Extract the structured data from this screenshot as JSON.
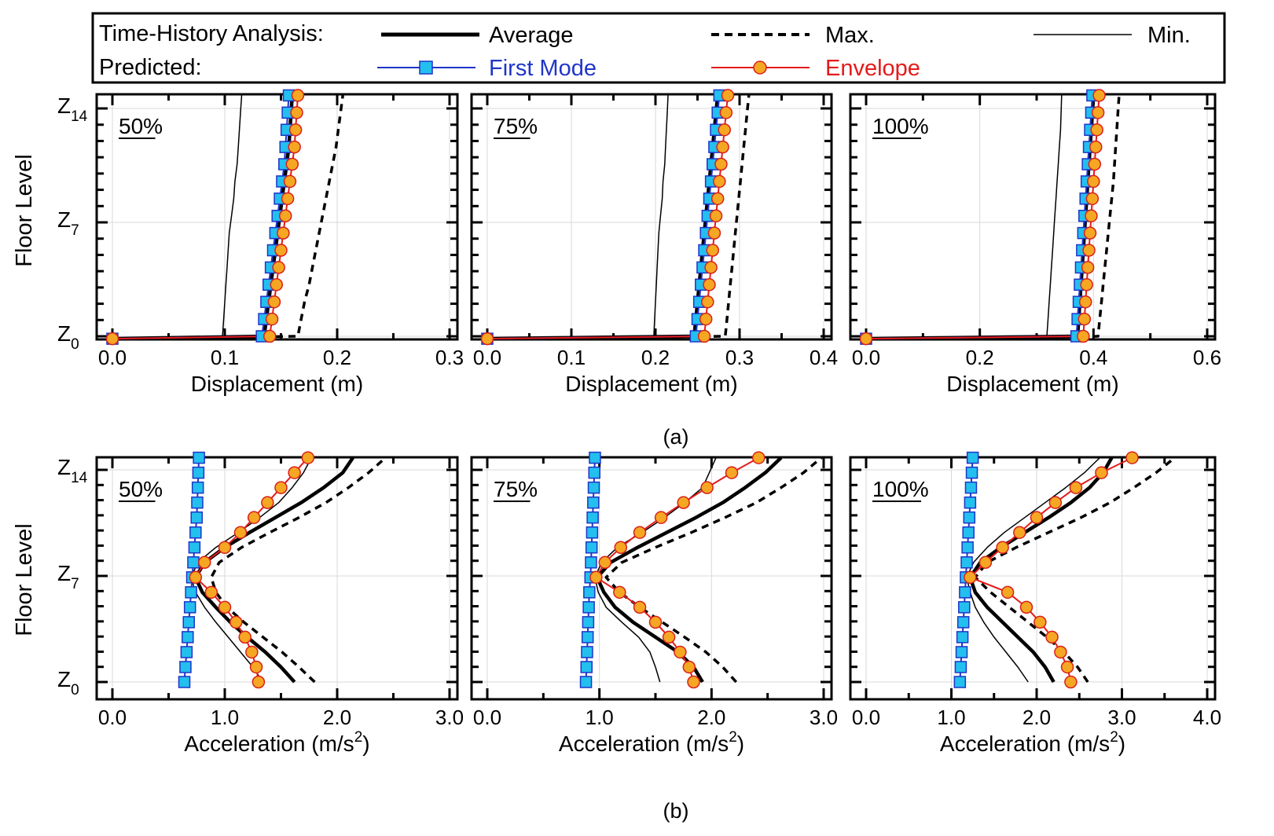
{
  "legend": {
    "row1_label": "Time-History Analysis:",
    "row2_label": "Predicted:",
    "average": "Average",
    "max": "Max.",
    "min": "Min.",
    "first_mode": "First Mode",
    "envelope": "Envelope"
  },
  "colors": {
    "first_mode_line": "#1f35c8",
    "first_mode_marker": "#23bfef",
    "envelope_line": "#e51a1a",
    "envelope_marker": "#f5a623",
    "envelope_marker_edge": "#d9201a"
  },
  "floor_level_label": "Floor Level",
  "y_tick_labels": [
    {
      "base": "Z",
      "sub": "14"
    },
    {
      "base": "Z",
      "sub": "7"
    },
    {
      "base": "Z",
      "sub": "0"
    }
  ],
  "caption_a": "(a)",
  "caption_b": "(b)",
  "chart_data": [
    {
      "type": "line",
      "title": "50%",
      "xlabel": "Displacement (m)",
      "ylabel": "Floor Level",
      "xlim": [
        0,
        0.3
      ],
      "xticks": [
        "0.0",
        "0.1",
        "0.2",
        "0.3"
      ],
      "ylim": [
        0,
        15
      ],
      "floors": [
        0,
        1,
        2,
        3,
        4,
        5,
        6,
        7,
        8,
        9,
        10,
        11,
        12,
        13,
        14,
        15
      ],
      "series": [
        {
          "name": "Average",
          "values": [
            0,
            0.135,
            0.137,
            0.139,
            0.141,
            0.143,
            0.145,
            0.147,
            0.149,
            0.151,
            0.153,
            0.155,
            0.157,
            0.158,
            0.159,
            0.16
          ]
        },
        {
          "name": "Max.",
          "values": [
            0,
            0.165,
            0.168,
            0.171,
            0.175,
            0.178,
            0.181,
            0.184,
            0.187,
            0.19,
            0.193,
            0.196,
            0.199,
            0.201,
            0.203,
            0.205
          ]
        },
        {
          "name": "Min.",
          "values": [
            0,
            0.098,
            0.099,
            0.1,
            0.101,
            0.102,
            0.103,
            0.104,
            0.106,
            0.108,
            0.109,
            0.111,
            0.112,
            0.113,
            0.114,
            0.115
          ]
        },
        {
          "name": "First Mode",
          "values": [
            0,
            0.133,
            0.135,
            0.137,
            0.139,
            0.141,
            0.143,
            0.145,
            0.147,
            0.149,
            0.151,
            0.153,
            0.154,
            0.155,
            0.156,
            0.157
          ]
        },
        {
          "name": "Envelope",
          "values": [
            0,
            0.14,
            0.142,
            0.144,
            0.146,
            0.148,
            0.15,
            0.152,
            0.154,
            0.156,
            0.158,
            0.16,
            0.162,
            0.163,
            0.164,
            0.165
          ]
        }
      ]
    },
    {
      "type": "line",
      "title": "75%",
      "xlabel": "Displacement (m)",
      "ylabel": "Floor Level",
      "xlim": [
        0,
        0.4
      ],
      "xticks": [
        "0.0",
        "0.1",
        "0.2",
        "0.3",
        "0.4"
      ],
      "ylim": [
        0,
        15
      ],
      "floors": [
        0,
        1,
        2,
        3,
        4,
        5,
        6,
        7,
        8,
        9,
        10,
        11,
        12,
        13,
        14,
        15
      ],
      "series": [
        {
          "name": "Average",
          "values": [
            0,
            0.246,
            0.248,
            0.25,
            0.252,
            0.254,
            0.256,
            0.258,
            0.26,
            0.262,
            0.264,
            0.266,
            0.268,
            0.27,
            0.272,
            0.274
          ]
        },
        {
          "name": "Max.",
          "values": [
            0,
            0.283,
            0.285,
            0.287,
            0.289,
            0.291,
            0.293,
            0.295,
            0.297,
            0.299,
            0.301,
            0.303,
            0.305,
            0.307,
            0.309,
            0.311
          ]
        },
        {
          "name": "Min.",
          "values": [
            0,
            0.198,
            0.199,
            0.2,
            0.201,
            0.202,
            0.203,
            0.204,
            0.206,
            0.208,
            0.209,
            0.211,
            0.212,
            0.213,
            0.214,
            0.215
          ]
        },
        {
          "name": "First Mode",
          "values": [
            0,
            0.248,
            0.25,
            0.252,
            0.254,
            0.256,
            0.258,
            0.26,
            0.262,
            0.264,
            0.266,
            0.268,
            0.27,
            0.272,
            0.274,
            0.276
          ]
        },
        {
          "name": "Envelope",
          "values": [
            0,
            0.258,
            0.26,
            0.262,
            0.264,
            0.266,
            0.268,
            0.27,
            0.272,
            0.274,
            0.276,
            0.278,
            0.28,
            0.282,
            0.284,
            0.286
          ]
        }
      ]
    },
    {
      "type": "line",
      "title": "100%",
      "xlabel": "Displacement (m)",
      "ylabel": "Floor Level",
      "xlim": [
        0,
        0.6
      ],
      "xticks": [
        "0.0",
        "0.2",
        "0.4",
        "0.6"
      ],
      "ylim": [
        0,
        15
      ],
      "floors": [
        0,
        1,
        2,
        3,
        4,
        5,
        6,
        7,
        8,
        9,
        10,
        11,
        12,
        13,
        14,
        15
      ],
      "series": [
        {
          "name": "Average",
          "values": [
            0,
            0.372,
            0.374,
            0.376,
            0.378,
            0.38,
            0.382,
            0.384,
            0.386,
            0.388,
            0.39,
            0.392,
            0.394,
            0.396,
            0.398,
            0.4
          ]
        },
        {
          "name": "Max.",
          "values": [
            0,
            0.408,
            0.411,
            0.414,
            0.417,
            0.42,
            0.423,
            0.426,
            0.429,
            0.432,
            0.435,
            0.437,
            0.439,
            0.441,
            0.443,
            0.445
          ]
        },
        {
          "name": "Min.",
          "values": [
            0,
            0.318,
            0.32,
            0.322,
            0.324,
            0.326,
            0.328,
            0.33,
            0.332,
            0.334,
            0.336,
            0.338,
            0.34,
            0.342,
            0.343,
            0.344
          ]
        },
        {
          "name": "First Mode",
          "values": [
            0,
            0.37,
            0.372,
            0.374,
            0.376,
            0.378,
            0.38,
            0.382,
            0.384,
            0.386,
            0.388,
            0.39,
            0.392,
            0.394,
            0.396,
            0.398
          ]
        },
        {
          "name": "Envelope",
          "values": [
            0,
            0.382,
            0.384,
            0.386,
            0.388,
            0.39,
            0.392,
            0.394,
            0.396,
            0.398,
            0.4,
            0.402,
            0.404,
            0.406,
            0.408,
            0.41
          ]
        }
      ]
    },
    {
      "type": "line",
      "title": "50%",
      "xlabel": "Acceleration (m/s",
      "xlabel_sup": "2",
      "xlabel_end": ")",
      "ylabel": "Floor Level",
      "xlim": [
        0,
        3.0
      ],
      "xticks": [
        "0.0",
        "1.0",
        "2.0",
        "3.0"
      ],
      "ylim": [
        0,
        15
      ],
      "floors": [
        0,
        1,
        2,
        3,
        4,
        5,
        6,
        7,
        8,
        9,
        10,
        11,
        12,
        13,
        14,
        15
      ],
      "series": [
        {
          "name": "Average",
          "values": [
            1.62,
            1.5,
            1.36,
            1.2,
            1.05,
            0.92,
            0.8,
            0.74,
            0.82,
            1.0,
            1.22,
            1.45,
            1.68,
            1.88,
            2.05,
            2.14
          ]
        },
        {
          "name": "Max.",
          "values": [
            1.8,
            1.66,
            1.51,
            1.34,
            1.17,
            1.02,
            0.92,
            0.88,
            0.95,
            1.15,
            1.4,
            1.66,
            1.9,
            2.1,
            2.28,
            2.43
          ]
        },
        {
          "name": "Min.",
          "values": [
            1.34,
            1.25,
            1.14,
            1.03,
            0.92,
            0.82,
            0.74,
            0.7,
            0.76,
            0.92,
            1.12,
            1.31,
            1.48,
            1.6,
            1.7,
            1.77
          ]
        },
        {
          "name": "First Mode",
          "values": [
            0.64,
            0.65,
            0.66,
            0.67,
            0.68,
            0.69,
            0.7,
            0.71,
            0.72,
            0.73,
            0.74,
            0.75,
            0.755,
            0.76,
            0.765,
            0.77
          ]
        },
        {
          "name": "Envelope",
          "values": [
            1.3,
            1.28,
            1.24,
            1.18,
            1.1,
            1.0,
            0.88,
            0.74,
            0.82,
            1.0,
            1.14,
            1.26,
            1.38,
            1.5,
            1.62,
            1.74
          ]
        }
      ]
    },
    {
      "type": "line",
      "title": "75%",
      "xlabel": "Acceleration (m/s",
      "xlabel_sup": "2",
      "xlabel_end": ")",
      "ylabel": "Floor Level",
      "xlim": [
        0,
        3.0
      ],
      "xticks": [
        "0.0",
        "1.0",
        "2.0",
        "3.0"
      ],
      "ylim": [
        0,
        15
      ],
      "floors": [
        0,
        1,
        2,
        3,
        4,
        5,
        6,
        7,
        8,
        9,
        10,
        11,
        12,
        13,
        14,
        15
      ],
      "series": [
        {
          "name": "Average",
          "values": [
            1.92,
            1.84,
            1.7,
            1.5,
            1.3,
            1.14,
            1.04,
            0.98,
            1.1,
            1.34,
            1.6,
            1.86,
            2.1,
            2.3,
            2.48,
            2.62
          ]
        },
        {
          "name": "Max.",
          "values": [
            2.22,
            2.1,
            1.95,
            1.76,
            1.56,
            1.36,
            1.18,
            1.06,
            1.2,
            1.5,
            1.82,
            2.12,
            2.4,
            2.62,
            2.82,
            2.98
          ]
        },
        {
          "name": "Min.",
          "values": [
            1.54,
            1.5,
            1.45,
            1.35,
            1.2,
            1.06,
            0.99,
            0.96,
            1.02,
            1.16,
            1.38,
            1.58,
            1.76,
            1.92,
            1.98,
            2.04
          ]
        },
        {
          "name": "First Mode",
          "values": [
            0.88,
            0.885,
            0.89,
            0.895,
            0.9,
            0.905,
            0.91,
            0.92,
            0.925,
            0.93,
            0.935,
            0.94,
            0.945,
            0.95,
            0.955,
            0.96
          ]
        },
        {
          "name": "Envelope",
          "values": [
            1.84,
            1.8,
            1.72,
            1.62,
            1.5,
            1.36,
            1.18,
            0.97,
            1.05,
            1.19,
            1.36,
            1.55,
            1.75,
            1.96,
            2.18,
            2.42
          ]
        }
      ]
    },
    {
      "type": "line",
      "title": "100%",
      "xlabel": "Acceleration (m/s",
      "xlabel_sup": "2",
      "xlabel_end": ")",
      "ylabel": "Floor Level",
      "xlim": [
        0,
        4.0
      ],
      "xticks": [
        "0.0",
        "1.0",
        "2.0",
        "3.0",
        "4.0"
      ],
      "ylim": [
        0,
        15
      ],
      "floors": [
        0,
        1,
        2,
        3,
        4,
        5,
        6,
        7,
        8,
        9,
        10,
        11,
        12,
        13,
        14,
        15
      ],
      "series": [
        {
          "name": "Average",
          "values": [
            2.2,
            2.1,
            1.96,
            1.78,
            1.6,
            1.42,
            1.28,
            1.22,
            1.34,
            1.58,
            1.86,
            2.14,
            2.4,
            2.62,
            2.78,
            2.88
          ]
        },
        {
          "name": "Max.",
          "values": [
            2.6,
            2.48,
            2.32,
            2.12,
            1.9,
            1.68,
            1.46,
            1.28,
            1.42,
            1.76,
            2.14,
            2.52,
            2.86,
            3.14,
            3.4,
            3.62
          ]
        },
        {
          "name": "Min.",
          "values": [
            1.9,
            1.78,
            1.64,
            1.5,
            1.38,
            1.28,
            1.22,
            1.18,
            1.26,
            1.42,
            1.62,
            1.86,
            2.1,
            2.34,
            2.56,
            2.74
          ]
        },
        {
          "name": "First Mode",
          "values": [
            1.1,
            1.11,
            1.12,
            1.13,
            1.14,
            1.15,
            1.16,
            1.17,
            1.18,
            1.19,
            1.2,
            1.21,
            1.22,
            1.23,
            1.24,
            1.25
          ]
        },
        {
          "name": "Envelope",
          "values": [
            2.4,
            2.36,
            2.28,
            2.18,
            2.04,
            1.88,
            1.66,
            1.22,
            1.4,
            1.6,
            1.8,
            2.0,
            2.22,
            2.46,
            2.76,
            3.12
          ]
        }
      ]
    }
  ]
}
